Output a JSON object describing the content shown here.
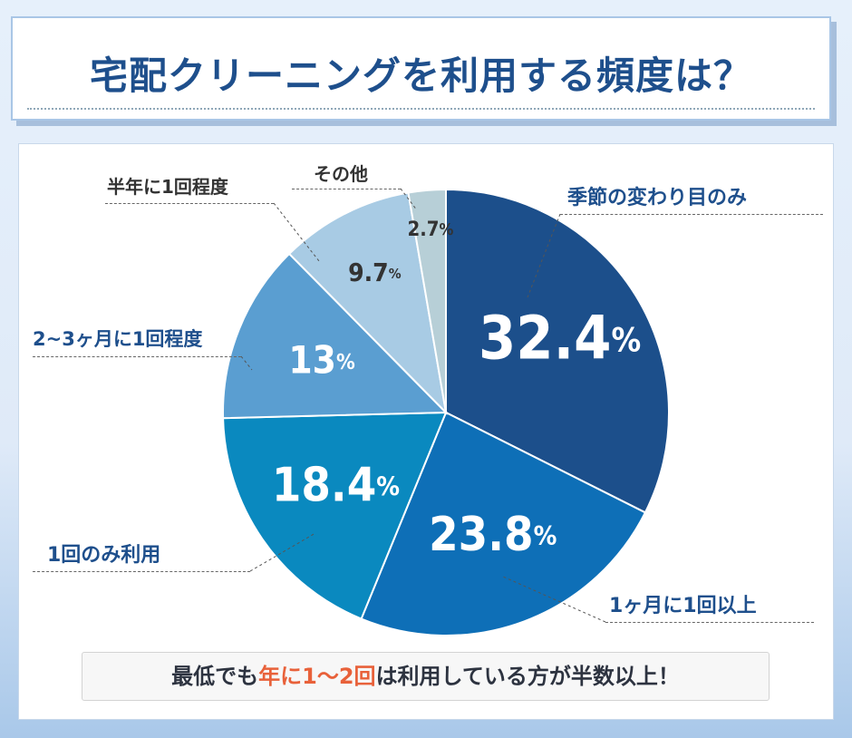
{
  "title": "宅配クリーニングを利用する頻度は？",
  "footer": {
    "pre": "最低でも",
    "highlight": "年に1〜2回",
    "post": "は利用している方が半数以上！",
    "highlight_color": "#e8613a"
  },
  "chart_data": {
    "type": "pie",
    "title": "宅配クリーニングを利用する頻度は？",
    "start": "top",
    "direction": "clockwise",
    "unit": "%",
    "categories": [
      "季節の変わり目のみ",
      "1ヶ月に1回以上",
      "1回のみ利用",
      "2~3ヶ月に1回程度",
      "半年に1回程度",
      "その他"
    ],
    "values": [
      32.4,
      23.8,
      18.4,
      13,
      9.7,
      2.7
    ],
    "value_labels": [
      "32.4",
      "23.8",
      "18.4",
      "13",
      "9.7",
      "2.7"
    ],
    "colors": [
      "#1c4f8b",
      "#0e6fb7",
      "#0a89bf",
      "#5a9ed1",
      "#a8cbe4",
      "#b7cfd7"
    ],
    "label_colors": [
      "#ffffff",
      "#ffffff",
      "#ffffff",
      "#ffffff",
      "#333333",
      "#333333"
    ]
  }
}
